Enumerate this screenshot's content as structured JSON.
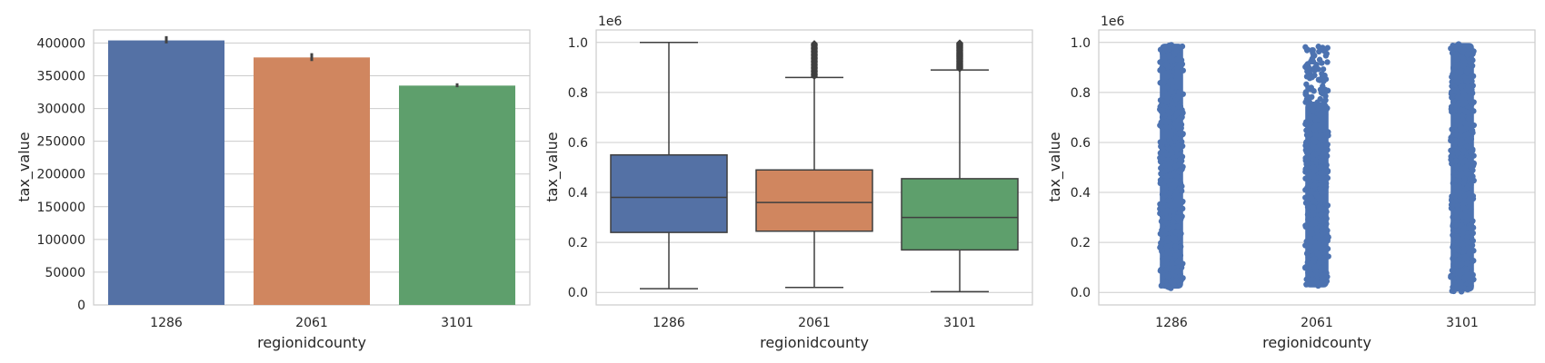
{
  "chart_data": [
    {
      "type": "bar",
      "xlabel": "regionidcounty",
      "ylabel": "tax_value",
      "categories": [
        "1286",
        "2061",
        "3101"
      ],
      "values": [
        404000,
        378000,
        335000
      ],
      "error_bars": [
        [
          399500,
          410500
        ],
        [
          372500,
          384500
        ],
        [
          332500,
          338500
        ]
      ],
      "colors": [
        "#5471a5",
        "#d0865f",
        "#5e9f6c"
      ],
      "ylim": [
        0,
        420000
      ],
      "yticks": [
        0,
        50000,
        100000,
        150000,
        200000,
        250000,
        300000,
        350000,
        400000
      ],
      "ytick_labels": [
        "0",
        "50000",
        "100000",
        "150000",
        "200000",
        "250000",
        "300000",
        "350000",
        "400000"
      ],
      "grid": true
    },
    {
      "type": "box",
      "xlabel": "regionidcounty",
      "ylabel": "tax_value",
      "offset_label": "1e6",
      "categories": [
        "1286",
        "2061",
        "3101"
      ],
      "boxes": [
        {
          "whislo": 0.015,
          "q1": 0.24,
          "med": 0.38,
          "q3": 0.55,
          "whishi": 1.0,
          "fliers_from": null,
          "fliers_to": null
        },
        {
          "whislo": 0.02,
          "q1": 0.245,
          "med": 0.36,
          "q3": 0.49,
          "whishi": 0.86,
          "fliers_from": 0.865,
          "fliers_to": 0.995
        },
        {
          "whislo": 0.003,
          "q1": 0.17,
          "med": 0.3,
          "q3": 0.455,
          "whishi": 0.89,
          "fliers_from": 0.895,
          "fliers_to": 0.998
        }
      ],
      "colors": [
        "#5471a5",
        "#d0865f",
        "#5e9f6c"
      ],
      "ylim": [
        -0.05,
        1.05
      ],
      "yticks": [
        0.0,
        0.2,
        0.4,
        0.6,
        0.8,
        1.0
      ],
      "ytick_labels": [
        "0.0",
        "0.2",
        "0.4",
        "0.6",
        "0.8",
        "1.0"
      ],
      "grid": true
    },
    {
      "type": "scatter",
      "subtype": "strip",
      "xlabel": "regionidcounty",
      "ylabel": "tax_value",
      "offset_label": "1e6",
      "categories": [
        "1286",
        "2061",
        "3101"
      ],
      "strips": [
        {
          "min": 0.015,
          "max": 0.995,
          "dense_to": 0.995
        },
        {
          "min": 0.02,
          "max": 0.985,
          "dense_to": 0.76
        },
        {
          "min": 0.003,
          "max": 0.998,
          "dense_to": 0.998
        }
      ],
      "color": "#4c72b0",
      "ylim": [
        -0.05,
        1.05
      ],
      "yticks": [
        0.0,
        0.2,
        0.4,
        0.6,
        0.8,
        1.0
      ],
      "ytick_labels": [
        "0.0",
        "0.2",
        "0.4",
        "0.6",
        "0.8",
        "1.0"
      ],
      "grid": true
    }
  ]
}
